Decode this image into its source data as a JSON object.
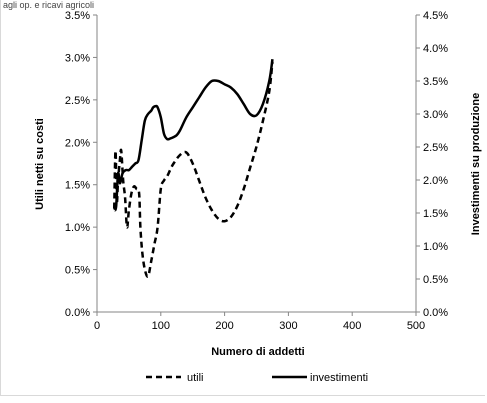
{
  "caption": "agli op. e ricavi agricoli",
  "chart_data": {
    "type": "line",
    "xlabel": "Numero di addetti",
    "ylabel_left": "Utili netti su costi",
    "ylabel_right": "Investimenti su produzione",
    "xlim": [
      0,
      500
    ],
    "ylim_left": [
      0,
      3.5
    ],
    "ylim_right": [
      0,
      4.5
    ],
    "x_ticks": [
      "0",
      "100",
      "200",
      "300",
      "400",
      "500"
    ],
    "y_left_ticks": [
      "0.0%",
      "0.5%",
      "1.0%",
      "1.5%",
      "2.0%",
      "2.5%",
      "3.0%",
      "3.5%"
    ],
    "y_right_ticks": [
      "0.0%",
      "0.5%",
      "1.0%",
      "1.5%",
      "2.0%",
      "2.5%",
      "3.0%",
      "3.5%",
      "4.0%",
      "4.5%"
    ],
    "grid": false,
    "legend_position": "bottom",
    "series": [
      {
        "name": "utili",
        "axis": "left",
        "style": "dashed",
        "color": "#000000",
        "x": [
          27,
          29,
          31,
          33,
          36,
          38,
          41,
          44,
          47,
          50,
          54,
          58,
          62,
          66,
          68,
          71,
          75,
          80,
          85,
          90,
          95,
          100,
          105,
          110,
          115,
          120,
          130,
          140,
          150,
          160,
          170,
          180,
          190,
          200,
          210,
          220,
          230,
          240,
          250,
          260,
          270,
          275
        ],
        "y": [
          1.22,
          1.9,
          1.3,
          1.55,
          1.8,
          1.9,
          1.55,
          1.35,
          1.0,
          1.2,
          1.4,
          1.48,
          1.45,
          1.4,
          1.0,
          0.7,
          0.5,
          0.42,
          0.6,
          0.8,
          1.0,
          1.45,
          1.55,
          1.6,
          1.68,
          1.75,
          1.85,
          1.88,
          1.75,
          1.55,
          1.35,
          1.2,
          1.1,
          1.07,
          1.12,
          1.25,
          1.45,
          1.7,
          1.95,
          2.25,
          2.6,
          2.95
        ]
      },
      {
        "name": "investimenti",
        "axis": "right",
        "style": "solid",
        "color": "#000000",
        "x": [
          27,
          30,
          33,
          36,
          40,
          45,
          50,
          55,
          60,
          65,
          70,
          75,
          80,
          85,
          88,
          92,
          95,
          100,
          105,
          110,
          115,
          120,
          125,
          130,
          140,
          150,
          160,
          170,
          180,
          190,
          200,
          210,
          220,
          230,
          240,
          250,
          260,
          270,
          275
        ],
        "y": [
          1.55,
          1.6,
          2.1,
          1.95,
          2.1,
          2.15,
          2.15,
          2.2,
          2.25,
          2.3,
          2.6,
          2.9,
          3.0,
          3.05,
          3.1,
          3.12,
          3.1,
          2.95,
          2.7,
          2.62,
          2.63,
          2.65,
          2.68,
          2.75,
          2.95,
          3.1,
          3.25,
          3.4,
          3.5,
          3.5,
          3.45,
          3.4,
          3.3,
          3.15,
          3.0,
          2.98,
          3.15,
          3.5,
          3.83
        ]
      }
    ]
  }
}
